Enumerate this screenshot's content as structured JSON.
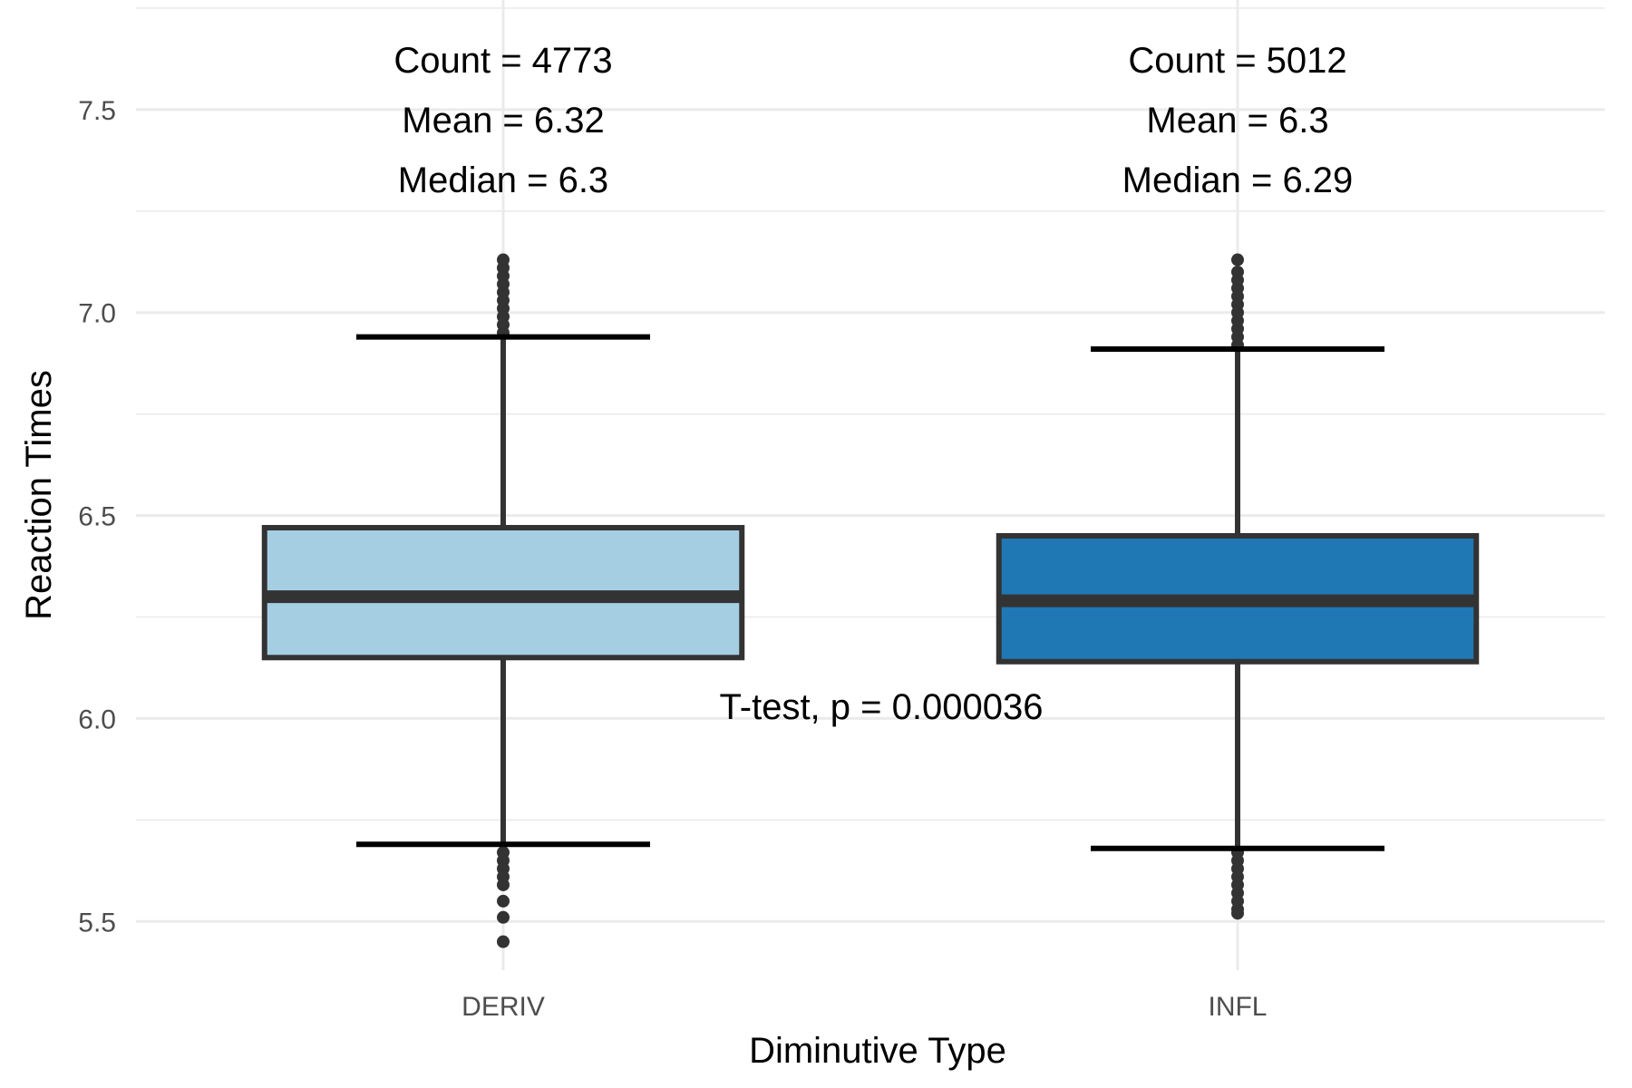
{
  "chart_data": {
    "type": "box",
    "xlabel": "Diminutive Type",
    "ylabel": "Reaction Times",
    "ylim": [
      5.38,
      7.77
    ],
    "yticks": [
      5.5,
      6.0,
      6.5,
      7.0,
      7.5
    ],
    "ytick_labels": [
      "5.5",
      "6.0",
      "6.5",
      "7.0",
      "7.5"
    ],
    "grid": true,
    "categories": [
      "DERIV",
      "INFL"
    ],
    "series": [
      {
        "category": "DERIV",
        "fill": "#a6cee3",
        "q1": 6.15,
        "median": 6.3,
        "q3": 6.47,
        "whisker_low": 5.69,
        "whisker_high": 6.94,
        "outliers_high": [
          6.95,
          6.97,
          6.99,
          7.01,
          7.03,
          7.05,
          7.07,
          7.09,
          7.11,
          7.13
        ],
        "outliers_low": [
          5.67,
          5.65,
          5.63,
          5.61,
          5.59,
          5.55,
          5.51,
          5.45
        ],
        "annotations": [
          "Count = 4773",
          "Mean = 6.32",
          "Median = 6.3"
        ]
      },
      {
        "category": "INFL",
        "fill": "#1f78b4",
        "q1": 6.14,
        "median": 6.29,
        "q3": 6.45,
        "whisker_low": 5.68,
        "whisker_high": 6.91,
        "outliers_high": [
          6.92,
          6.94,
          6.96,
          6.98,
          7.0,
          7.02,
          7.04,
          7.06,
          7.08,
          7.1,
          7.13
        ],
        "outliers_low": [
          5.67,
          5.65,
          5.63,
          5.61,
          5.59,
          5.57,
          5.55,
          5.53,
          5.52
        ],
        "annotations": [
          "Count = 5012",
          "Mean = 6.3",
          "Median = 6.29"
        ]
      }
    ],
    "test_annotation": {
      "text": "T-test, p = 0.000036",
      "y": 6.03
    },
    "colors": {
      "box_stroke": "#333333",
      "whisker_cap": "#000000",
      "grid": "#ebebeb"
    }
  }
}
